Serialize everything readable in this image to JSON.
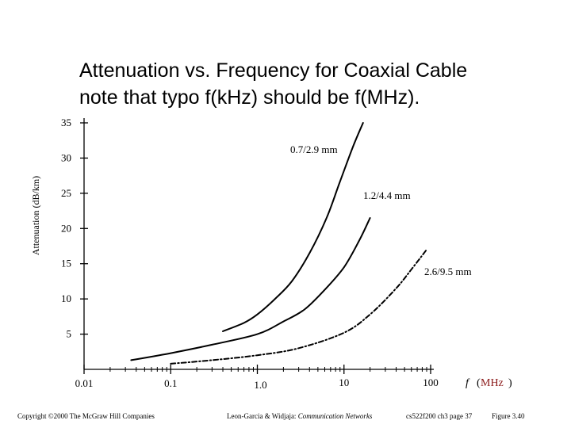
{
  "slide": {
    "title_line1": "Attenuation vs. Frequency for Coaxial Cable",
    "title_line2": "note that typo f(kHz) should be f(MHz).",
    "footer_copyright": "Copyright ©2000 The McGraw Hill Companies",
    "footer_authors": "Leon-Garcia & Widjaja:",
    "footer_book": "Communication Networks",
    "footer_page": "cs522f200 ch3 page 37",
    "footer_figure": "Figure 3.40"
  },
  "chart_data": {
    "type": "line",
    "title": "",
    "ylabel": "Attenuation (dB/km)",
    "xlabel_f": "f",
    "xlabel_unit": "MHz",
    "x_scale": "log",
    "xlim": [
      0.01,
      100
    ],
    "ylim": [
      0,
      35
    ],
    "x_ticks": [
      {
        "value": 0.01,
        "label": "0.01"
      },
      {
        "value": 0.1,
        "label": "0.1"
      },
      {
        "value": 1,
        "label": "1.0"
      },
      {
        "value": 10,
        "label": "10"
      },
      {
        "value": 100,
        "label": "100"
      }
    ],
    "y_ticks": [
      {
        "value": 5,
        "label": "5"
      },
      {
        "value": 10,
        "label": "10"
      },
      {
        "value": 15,
        "label": "15"
      },
      {
        "value": 20,
        "label": "20"
      },
      {
        "value": 25,
        "label": "25"
      },
      {
        "value": 30,
        "label": "30"
      },
      {
        "value": 35,
        "label": "35"
      }
    ],
    "grid": false,
    "series": [
      {
        "name": "0.7/2.9 mm",
        "style": "solid",
        "x": [
          0.4,
          0.7,
          1.0,
          1.6,
          2.5,
          4.0,
          6.3,
          8.9,
          12.6,
          16.6
        ],
        "y": [
          5.4,
          6.6,
          7.8,
          10.0,
          12.5,
          16.5,
          21.5,
          26.5,
          31.5,
          35.0
        ]
      },
      {
        "name": "1.2/4.4 mm",
        "style": "solid",
        "x": [
          0.035,
          0.1,
          0.3,
          1.0,
          2.0,
          3.5,
          6.0,
          10.0,
          15.0,
          20.0
        ],
        "y": [
          1.3,
          2.3,
          3.5,
          5.0,
          6.8,
          8.5,
          11.3,
          14.5,
          18.3,
          21.5
        ]
      },
      {
        "name": "2.6/9.5 mm",
        "style": "dashdot",
        "x": [
          0.1,
          0.3,
          1.0,
          3.0,
          10.0,
          20.0,
          40.0,
          60.0,
          90.0
        ],
        "y": [
          0.8,
          1.3,
          2.0,
          3.0,
          5.2,
          7.8,
          11.5,
          14.2,
          17.0
        ]
      }
    ]
  }
}
